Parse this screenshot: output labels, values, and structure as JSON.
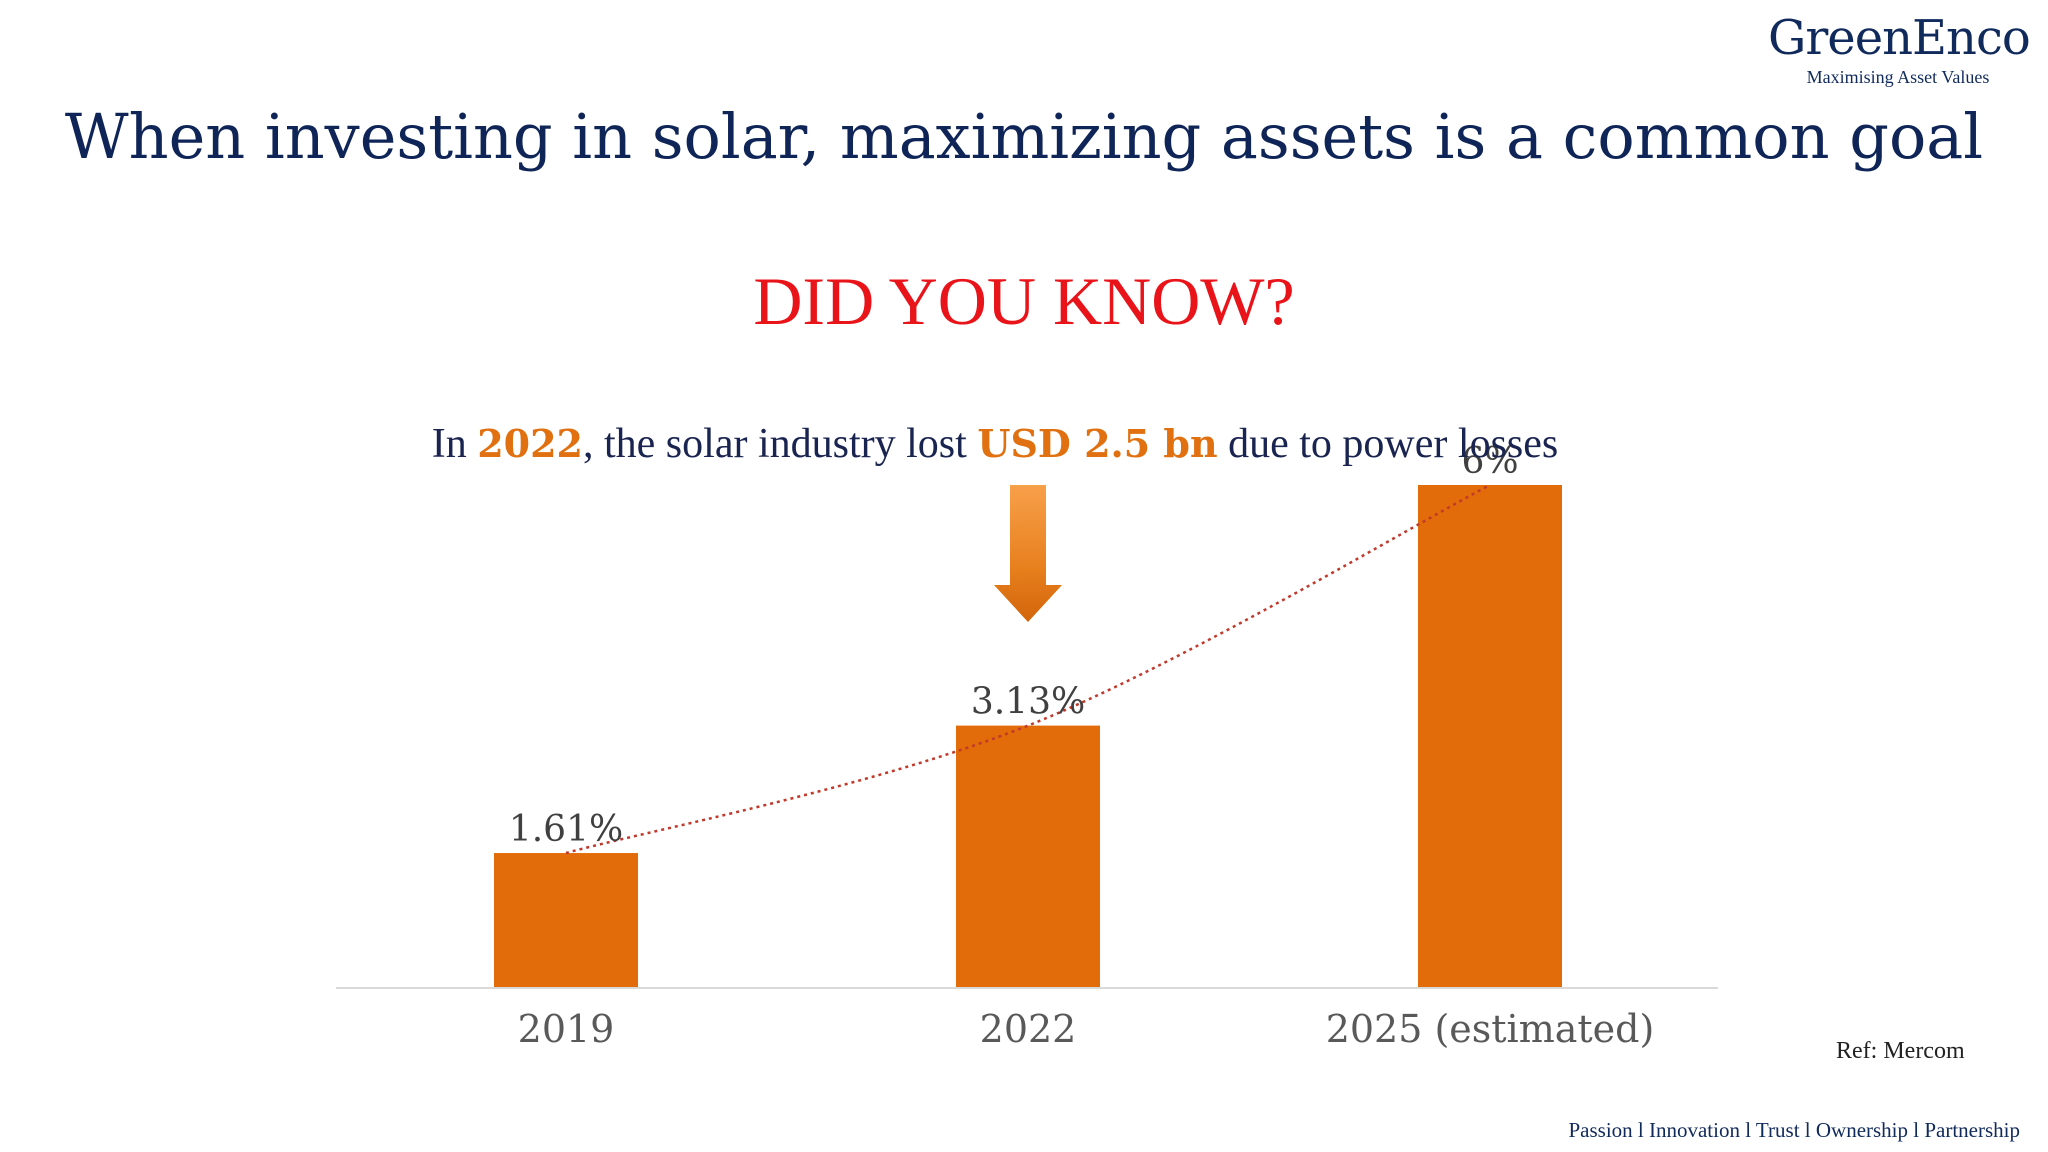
{
  "logo": {
    "name": "GreenEnco",
    "tagline": "Maximising Asset Values"
  },
  "title": "When investing in solar, maximizing assets is a common goal",
  "subtitle": "DID YOU KNOW?",
  "fact": {
    "prefix": "In ",
    "year": "2022",
    "middle": ", the solar industry lost ",
    "amount": "USD 2.5 bn",
    "suffix": " due to power losses"
  },
  "colors": {
    "bar": "#e36c0a",
    "title": "#0f2557",
    "subtitle": "#e8141a",
    "highlight": "#e07010",
    "trend": "#c0392b"
  },
  "chart_data": {
    "type": "bar",
    "categories": [
      "2019",
      "2022",
      "2025 (estimated)"
    ],
    "values": [
      1.61,
      3.13,
      6
    ],
    "data_labels": [
      "1.61%",
      "3.13%",
      "6%"
    ],
    "ylim": [
      0,
      6
    ],
    "trendline": "dotted",
    "grid": false,
    "annotation_arrow_category": "2022"
  },
  "ref": "Ref: Mercom",
  "footer": "Passion l Innovation l Trust l Ownership l Partnership"
}
